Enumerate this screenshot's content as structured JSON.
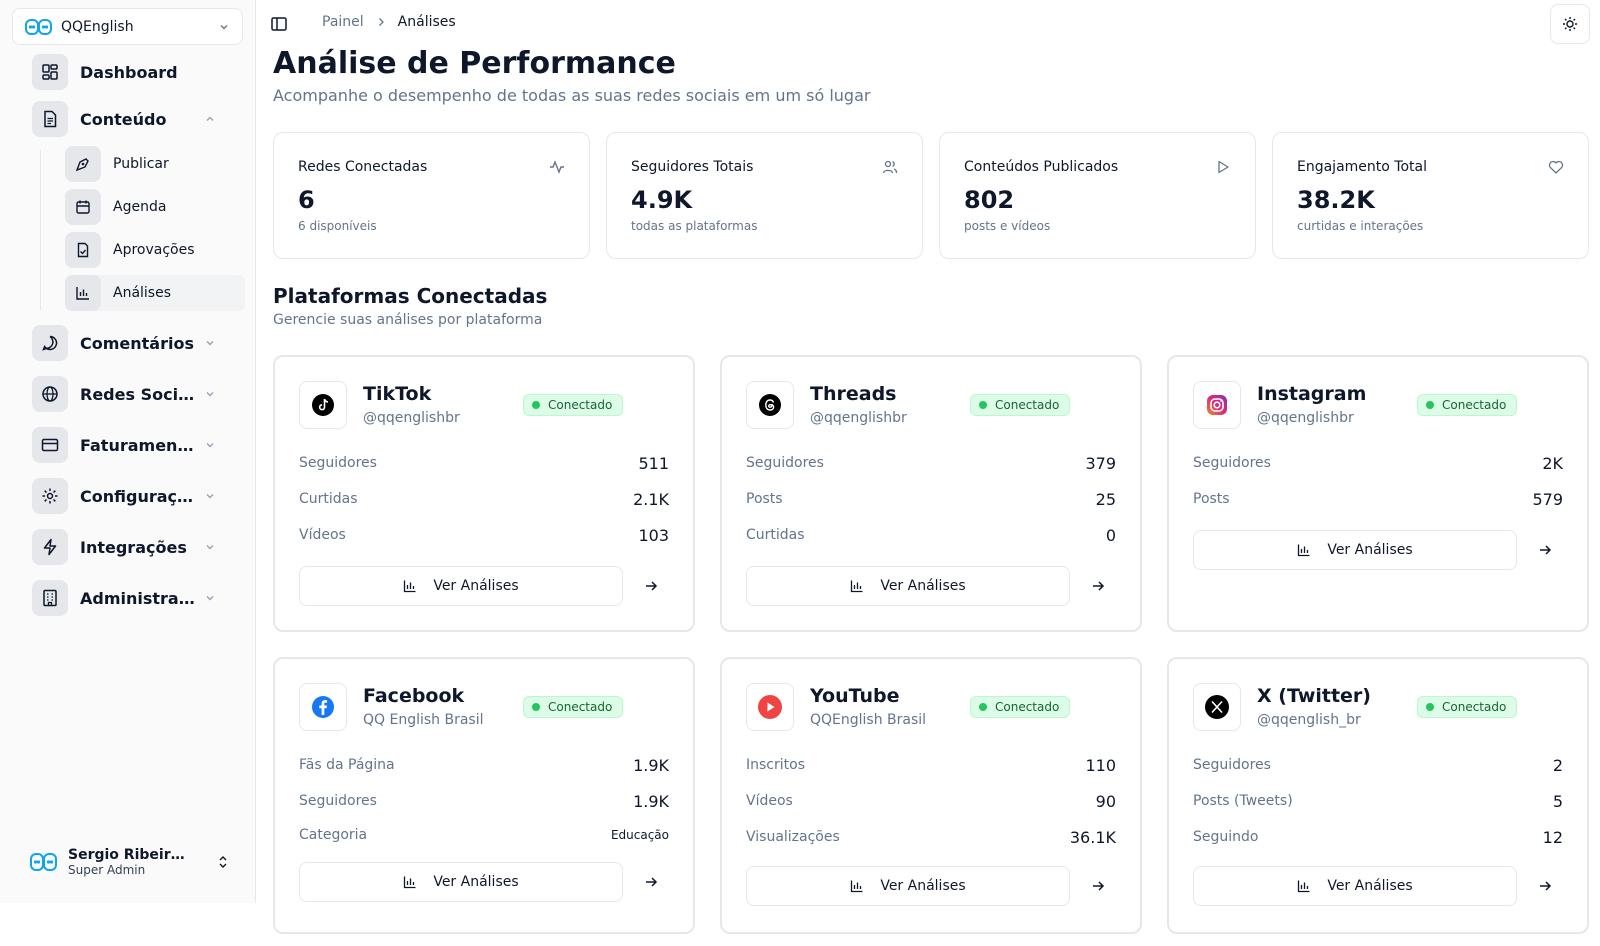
{
  "org": {
    "name": "QQEnglish"
  },
  "sidebar": {
    "items": [
      {
        "label": "Dashboard"
      },
      {
        "label": "Conteúdo"
      },
      {
        "label": "Comentários"
      },
      {
        "label": "Redes Sociais"
      },
      {
        "label": "Faturamento"
      },
      {
        "label": "Configurações"
      },
      {
        "label": "Integrações"
      },
      {
        "label": "Administração"
      }
    ],
    "content_sub": [
      {
        "label": "Publicar"
      },
      {
        "label": "Agenda"
      },
      {
        "label": "Aprovações"
      },
      {
        "label": "Análises"
      }
    ]
  },
  "user": {
    "name": "Sergio Ribeiro Martins",
    "role": "Super Admin"
  },
  "breadcrumb": {
    "root": "Painel",
    "current": "Análises"
  },
  "page": {
    "title": "Análise de Performance",
    "subtitle": "Acompanhe o desempenho de todas as suas redes sociais em um só lugar"
  },
  "stats": [
    {
      "label": "Redes Conectadas",
      "value": "6",
      "sub": "6 disponíveis",
      "icon": "activity-icon"
    },
    {
      "label": "Seguidores Totais",
      "value": "4.9K",
      "sub": "todas as plataformas",
      "icon": "users-icon"
    },
    {
      "label": "Conteúdos Publicados",
      "value": "802",
      "sub": "posts e vídeos",
      "icon": "play-icon"
    },
    {
      "label": "Engajamento Total",
      "value": "38.2K",
      "sub": "curtidas e interações",
      "icon": "heart-icon"
    }
  ],
  "section": {
    "title": "Plataformas Conectadas",
    "subtitle": "Gerencie suas análises por plataforma"
  },
  "status_label": "Conectado",
  "button_label": "Ver Análises",
  "platforms": [
    {
      "name": "TikTok",
      "handle": "@qqenglishbr",
      "rows": [
        {
          "k": "Seguidores",
          "v": "511"
        },
        {
          "k": "Curtidas",
          "v": "2.1K"
        },
        {
          "k": "Vídeos",
          "v": "103"
        }
      ]
    },
    {
      "name": "Threads",
      "handle": "@qqenglishbr",
      "rows": [
        {
          "k": "Seguidores",
          "v": "379"
        },
        {
          "k": "Posts",
          "v": "25"
        },
        {
          "k": "Curtidas",
          "v": "0"
        }
      ]
    },
    {
      "name": "Instagram",
      "handle": "@qqenglishbr",
      "rows": [
        {
          "k": "Seguidores",
          "v": "2K"
        },
        {
          "k": "Posts",
          "v": "579"
        }
      ]
    },
    {
      "name": "Facebook",
      "handle": "QQ English Brasil",
      "rows": [
        {
          "k": "Fãs da Página",
          "v": "1.9K"
        },
        {
          "k": "Seguidores",
          "v": "1.9K"
        },
        {
          "k": "Categoria",
          "v": "Educação"
        }
      ]
    },
    {
      "name": "YouTube",
      "handle": "QQEnglish Brasil",
      "rows": [
        {
          "k": "Inscritos",
          "v": "110"
        },
        {
          "k": "Vídeos",
          "v": "90"
        },
        {
          "k": "Visualizações",
          "v": "36.1K"
        }
      ]
    },
    {
      "name": "X (Twitter)",
      "handle": "@qqenglish_br",
      "rows": [
        {
          "k": "Seguidores",
          "v": "2"
        },
        {
          "k": "Posts (Tweets)",
          "v": "5"
        },
        {
          "k": "Seguindo",
          "v": "12"
        }
      ]
    }
  ],
  "colors": {
    "accent": "#0f172a",
    "connected": "#22c55e",
    "badge_bg": "#dcfce7",
    "brand": "#0ea5e9"
  }
}
